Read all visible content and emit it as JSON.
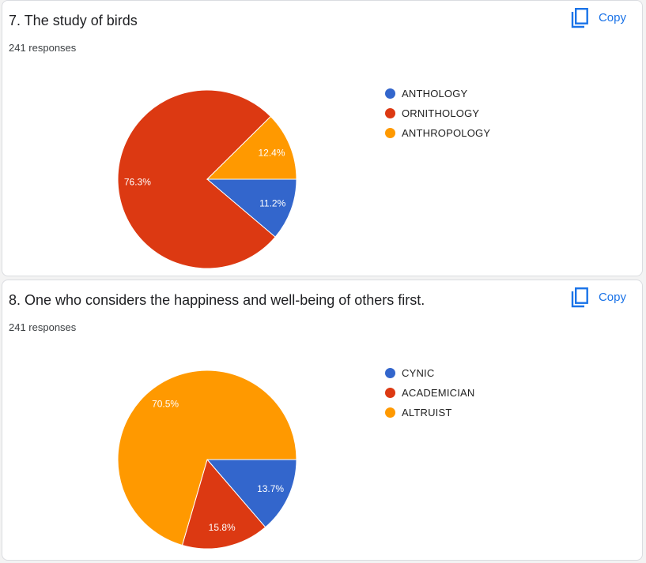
{
  "copy_label": "Copy",
  "questions": [
    {
      "title": "7. The study of birds",
      "responses": "241 responses",
      "legend": [
        {
          "label": "ANTHOLOGY",
          "color": "#3366cc"
        },
        {
          "label": "ORNITHOLOGY",
          "color": "#dc3912"
        },
        {
          "label": "ANTHROPOLOGY",
          "color": "#ff9900"
        }
      ]
    },
    {
      "title": "8. One who considers the happiness and well-being of others first.",
      "responses": "241 responses",
      "legend": [
        {
          "label": "CYNIC",
          "color": "#3366cc"
        },
        {
          "label": "ACADEMICIAN",
          "color": "#dc3912"
        },
        {
          "label": "ALTRUIST",
          "color": "#ff9900"
        }
      ]
    }
  ],
  "chart_data": [
    {
      "type": "pie",
      "title": "7. The study of birds",
      "categories": [
        "ANTHOLOGY",
        "ORNITHOLOGY",
        "ANTHROPOLOGY"
      ],
      "values": [
        11.2,
        76.3,
        12.4
      ],
      "labels": [
        "11.2%",
        "76.3%",
        "12.4%"
      ],
      "colors": [
        "#3366cc",
        "#dc3912",
        "#ff9900"
      ],
      "legend": "right"
    },
    {
      "type": "pie",
      "title": "8. One who considers the happiness and well-being of others first.",
      "categories": [
        "CYNIC",
        "ACADEMICIAN",
        "ALTRUIST"
      ],
      "values": [
        13.7,
        15.8,
        70.5
      ],
      "labels": [
        "13.7%",
        "15.8%",
        "70.5%"
      ],
      "colors": [
        "#3366cc",
        "#dc3912",
        "#ff9900"
      ],
      "legend": "right"
    }
  ]
}
